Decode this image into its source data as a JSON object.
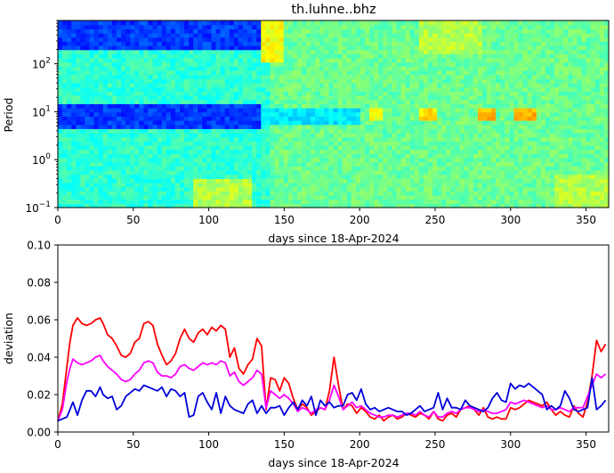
{
  "chart_data": [
    {
      "type": "heatmap",
      "title": "th.luhne..bhz",
      "xlabel": "days since 18-Apr-2024",
      "ylabel": "Period",
      "xlim": [
        0,
        365
      ],
      "ylim": [
        0.1,
        800
      ],
      "yscale": "log",
      "xticks": [
        "0",
        "50",
        "100",
        "150",
        "200",
        "250",
        "300",
        "350"
      ],
      "xtick_values": [
        0,
        50,
        100,
        150,
        200,
        250,
        300,
        350
      ],
      "yticks": [
        {
          "base": "10",
          "exp": "2",
          "value": 100
        },
        {
          "base": "10",
          "exp": "1",
          "value": 10
        },
        {
          "base": "10",
          "exp": "0",
          "value": 1
        },
        {
          "base": "10",
          "exp": "−1",
          "value": 0.1
        }
      ],
      "colormap": "jet",
      "regions": [
        {
          "x": [
            0,
            135
          ],
          "period": [
            200,
            800
          ],
          "level": 0.18
        },
        {
          "x": [
            135,
            150
          ],
          "period": [
            100,
            800
          ],
          "level": 0.62
        },
        {
          "x": [
            0,
            135
          ],
          "period": [
            4.5,
            14
          ],
          "level": 0.18
        },
        {
          "x": [
            135,
            200
          ],
          "period": [
            5,
            12
          ],
          "level": 0.35
        },
        {
          "x": [
            205,
            215
          ],
          "period": [
            6,
            12
          ],
          "level": 0.6
        },
        {
          "x": [
            238,
            250
          ],
          "period": [
            6,
            12
          ],
          "level": 0.65
        },
        {
          "x": [
            278,
            290
          ],
          "period": [
            7,
            11
          ],
          "level": 0.7
        },
        {
          "x": [
            303,
            318
          ],
          "period": [
            7,
            11
          ],
          "level": 0.7
        },
        {
          "x": [
            90,
            130
          ],
          "period": [
            0.1,
            0.4
          ],
          "level": 0.55
        },
        {
          "x": [
            330,
            365
          ],
          "period": [
            0.1,
            0.5
          ],
          "level": 0.55
        },
        {
          "x": [
            240,
            280
          ],
          "period": [
            150,
            800
          ],
          "level": 0.55
        }
      ]
    },
    {
      "type": "line",
      "xlabel": "days since 18-Apr-2024",
      "ylabel": "deviation",
      "xlim": [
        0,
        365
      ],
      "ylim": [
        0,
        0.1
      ],
      "xticks": [
        "0",
        "50",
        "100",
        "150",
        "200",
        "250",
        "300",
        "350"
      ],
      "xtick_values": [
        0,
        50,
        100,
        150,
        200,
        250,
        300,
        350
      ],
      "yticks": [
        "0.00",
        "0.02",
        "0.04",
        "0.06",
        "0.08",
        "0.10"
      ],
      "ytick_values": [
        0,
        0.02,
        0.04,
        0.06,
        0.08,
        0.1
      ],
      "series": [
        {
          "color": "#ff0000",
          "x": [
            0,
            3,
            6,
            8,
            10,
            13,
            16,
            19,
            22,
            25,
            28,
            30,
            33,
            36,
            39,
            42,
            45,
            48,
            51,
            54,
            57,
            60,
            63,
            66,
            69,
            72,
            75,
            78,
            81,
            84,
            87,
            90,
            93,
            96,
            99,
            102,
            105,
            108,
            111,
            114,
            117,
            120,
            123,
            126,
            129,
            132,
            135,
            138,
            141,
            144,
            147,
            150,
            153,
            156,
            159,
            162,
            165,
            168,
            171,
            174,
            177,
            180,
            183,
            186,
            189,
            192,
            195,
            198,
            201,
            204,
            207,
            210,
            213,
            216,
            219,
            222,
            225,
            228,
            231,
            234,
            237,
            240,
            243,
            246,
            249,
            252,
            255,
            258,
            261,
            264,
            267,
            270,
            273,
            276,
            279,
            282,
            285,
            288,
            291,
            294,
            297,
            300,
            303,
            306,
            309,
            312,
            315,
            318,
            321,
            324,
            327,
            330,
            333,
            336,
            339,
            342,
            345,
            348,
            351,
            354,
            357,
            360,
            363
          ],
          "y": [
            0.006,
            0.015,
            0.035,
            0.048,
            0.057,
            0.061,
            0.058,
            0.057,
            0.058,
            0.06,
            0.061,
            0.058,
            0.052,
            0.05,
            0.046,
            0.041,
            0.04,
            0.042,
            0.048,
            0.05,
            0.058,
            0.059,
            0.057,
            0.047,
            0.041,
            0.036,
            0.038,
            0.042,
            0.05,
            0.055,
            0.05,
            0.048,
            0.053,
            0.055,
            0.052,
            0.056,
            0.054,
            0.057,
            0.055,
            0.04,
            0.045,
            0.034,
            0.031,
            0.036,
            0.039,
            0.05,
            0.046,
            0.012,
            0.029,
            0.028,
            0.022,
            0.029,
            0.026,
            0.018,
            0.012,
            0.015,
            0.013,
            0.009,
            0.011,
            0.013,
            0.012,
            0.022,
            0.04,
            0.025,
            0.012,
            0.015,
            0.014,
            0.01,
            0.013,
            0.011,
            0.008,
            0.007,
            0.009,
            0.006,
            0.008,
            0.009,
            0.007,
            0.008,
            0.01,
            0.009,
            0.008,
            0.01,
            0.009,
            0.007,
            0.011,
            0.007,
            0.006,
            0.009,
            0.01,
            0.008,
            0.012,
            0.013,
            0.014,
            0.012,
            0.009,
            0.013,
            0.008,
            0.007,
            0.008,
            0.007,
            0.007,
            0.013,
            0.012,
            0.013,
            0.015,
            0.017,
            0.016,
            0.015,
            0.014,
            0.016,
            0.012,
            0.009,
            0.011,
            0.009,
            0.008,
            0.014,
            0.01,
            0.008,
            0.016,
            0.03,
            0.049,
            0.043,
            0.047
          ]
        },
        {
          "color": "#ff00ff",
          "x": [
            0,
            3,
            6,
            8,
            10,
            13,
            16,
            19,
            22,
            25,
            28,
            30,
            33,
            36,
            39,
            42,
            45,
            48,
            51,
            54,
            57,
            60,
            63,
            66,
            69,
            72,
            75,
            78,
            81,
            84,
            87,
            90,
            93,
            96,
            99,
            102,
            105,
            108,
            111,
            114,
            117,
            120,
            123,
            126,
            129,
            132,
            135,
            138,
            141,
            144,
            147,
            150,
            153,
            156,
            159,
            162,
            165,
            168,
            171,
            174,
            177,
            180,
            183,
            186,
            189,
            192,
            195,
            198,
            201,
            204,
            207,
            210,
            213,
            216,
            219,
            222,
            225,
            228,
            231,
            234,
            237,
            240,
            243,
            246,
            249,
            252,
            255,
            258,
            261,
            264,
            267,
            270,
            273,
            276,
            279,
            282,
            285,
            288,
            291,
            294,
            297,
            300,
            303,
            306,
            309,
            312,
            315,
            318,
            321,
            324,
            327,
            330,
            333,
            336,
            339,
            342,
            345,
            348,
            351,
            354,
            357,
            360,
            363
          ],
          "y": [
            0.006,
            0.012,
            0.027,
            0.034,
            0.039,
            0.037,
            0.036,
            0.037,
            0.038,
            0.04,
            0.041,
            0.038,
            0.035,
            0.033,
            0.031,
            0.028,
            0.027,
            0.028,
            0.031,
            0.033,
            0.037,
            0.038,
            0.037,
            0.032,
            0.03,
            0.03,
            0.029,
            0.031,
            0.035,
            0.036,
            0.034,
            0.033,
            0.035,
            0.037,
            0.036,
            0.037,
            0.036,
            0.038,
            0.037,
            0.03,
            0.032,
            0.027,
            0.025,
            0.027,
            0.029,
            0.033,
            0.031,
            0.013,
            0.022,
            0.02,
            0.018,
            0.02,
            0.018,
            0.015,
            0.011,
            0.013,
            0.012,
            0.01,
            0.012,
            0.013,
            0.012,
            0.017,
            0.025,
            0.019,
            0.012,
            0.014,
            0.016,
            0.013,
            0.014,
            0.012,
            0.01,
            0.009,
            0.008,
            0.008,
            0.009,
            0.009,
            0.008,
            0.009,
            0.01,
            0.01,
            0.009,
            0.011,
            0.009,
            0.008,
            0.011,
            0.008,
            0.008,
            0.01,
            0.011,
            0.01,
            0.012,
            0.013,
            0.013,
            0.012,
            0.011,
            0.012,
            0.011,
            0.01,
            0.01,
            0.011,
            0.012,
            0.016,
            0.015,
            0.016,
            0.017,
            0.016,
            0.015,
            0.014,
            0.013,
            0.014,
            0.012,
            0.012,
            0.013,
            0.012,
            0.011,
            0.013,
            0.013,
            0.013,
            0.019,
            0.025,
            0.031,
            0.029,
            0.031
          ]
        },
        {
          "color": "#0000dd",
          "x": [
            0,
            3,
            6,
            8,
            10,
            13,
            16,
            19,
            22,
            25,
            28,
            30,
            33,
            36,
            39,
            42,
            45,
            48,
            51,
            54,
            57,
            60,
            63,
            66,
            69,
            72,
            75,
            78,
            81,
            84,
            87,
            90,
            93,
            96,
            99,
            102,
            105,
            108,
            111,
            114,
            117,
            120,
            123,
            126,
            129,
            132,
            135,
            138,
            141,
            144,
            147,
            150,
            153,
            156,
            159,
            162,
            165,
            168,
            171,
            174,
            177,
            180,
            183,
            186,
            189,
            192,
            195,
            198,
            201,
            204,
            207,
            210,
            213,
            216,
            219,
            222,
            225,
            228,
            231,
            234,
            237,
            240,
            243,
            246,
            249,
            252,
            255,
            258,
            261,
            264,
            267,
            270,
            273,
            276,
            279,
            282,
            285,
            288,
            291,
            294,
            297,
            300,
            303,
            306,
            309,
            312,
            315,
            318,
            321,
            324,
            327,
            330,
            333,
            336,
            339,
            342,
            345,
            348,
            351,
            354,
            357,
            360,
            363
          ],
          "y": [
            0.006,
            0.007,
            0.008,
            0.012,
            0.016,
            0.009,
            0.017,
            0.022,
            0.022,
            0.019,
            0.024,
            0.02,
            0.018,
            0.019,
            0.012,
            0.014,
            0.019,
            0.021,
            0.023,
            0.022,
            0.025,
            0.024,
            0.023,
            0.022,
            0.024,
            0.019,
            0.023,
            0.022,
            0.019,
            0.021,
            0.008,
            0.009,
            0.019,
            0.021,
            0.016,
            0.012,
            0.021,
            0.01,
            0.019,
            0.014,
            0.012,
            0.011,
            0.01,
            0.015,
            0.017,
            0.01,
            0.014,
            0.01,
            0.013,
            0.013,
            0.014,
            0.009,
            0.013,
            0.016,
            0.012,
            0.017,
            0.014,
            0.019,
            0.009,
            0.017,
            0.014,
            0.016,
            0.013,
            0.014,
            0.014,
            0.02,
            0.021,
            0.017,
            0.023,
            0.015,
            0.012,
            0.013,
            0.011,
            0.012,
            0.013,
            0.012,
            0.011,
            0.011,
            0.009,
            0.01,
            0.012,
            0.014,
            0.011,
            0.012,
            0.013,
            0.021,
            0.012,
            0.018,
            0.013,
            0.013,
            0.012,
            0.017,
            0.014,
            0.013,
            0.012,
            0.011,
            0.013,
            0.018,
            0.021,
            0.017,
            0.016,
            0.026,
            0.023,
            0.025,
            0.024,
            0.026,
            0.024,
            0.022,
            0.02,
            0.012,
            0.014,
            0.012,
            0.014,
            0.022,
            0.018,
            0.012,
            0.011,
            0.012,
            0.013,
            0.029,
            0.012,
            0.014,
            0.017
          ]
        }
      ]
    }
  ]
}
